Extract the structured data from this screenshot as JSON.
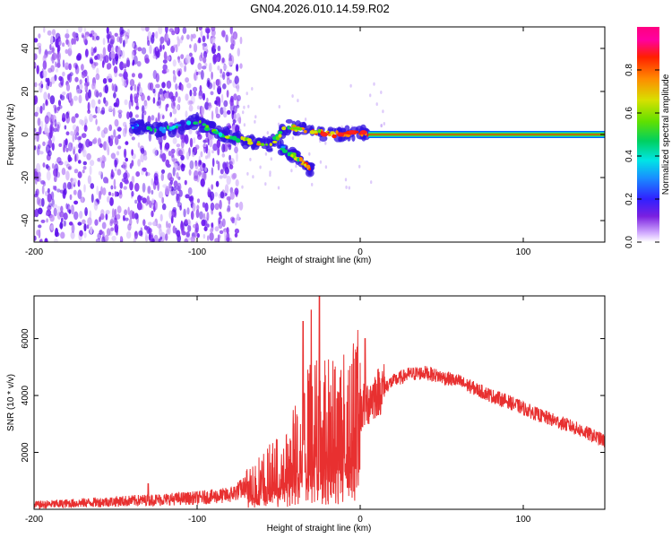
{
  "title": "GN04.2026.010.14.59.R02",
  "chart_data": [
    {
      "type": "heatmap",
      "name": "spectrogram",
      "xlabel": "Height of straight line (km)",
      "ylabel": "Frequency (Hz)",
      "xlim": [
        -200,
        150
      ],
      "ylim": [
        -50,
        50
      ],
      "xticks": [
        -200,
        -100,
        0,
        100
      ],
      "yticks": [
        -40,
        -20,
        0,
        20,
        40
      ],
      "colorbar": {
        "label": "Normalized spectral amplitude",
        "range": [
          0,
          1
        ],
        "ticks": [
          "0.0",
          "0.2",
          "0.4",
          "0.6",
          "0.8"
        ],
        "colors": [
          "#ffffff",
          "#d4b0ff",
          "#7a20e0",
          "#3020ff",
          "#1890ff",
          "#00e5e5",
          "#00d060",
          "#60e000",
          "#d8e000",
          "#ff8a00",
          "#ff2000",
          "#ff00a0",
          "#ff0080"
        ]
      },
      "carrier": {
        "x_start": 5,
        "x_end": 150,
        "frequency": 0
      },
      "features": [
        {
          "label": "noise",
          "x_range": [
            -200,
            -75
          ],
          "freq_range": [
            -50,
            50
          ]
        },
        {
          "label": "signal track",
          "points": [
            [
              -140,
              4
            ],
            [
              -120,
              2
            ],
            [
              -100,
              6
            ],
            [
              -85,
              0
            ],
            [
              -70,
              -3
            ],
            [
              -55,
              -5
            ],
            [
              -45,
              4
            ],
            [
              -30,
              1
            ],
            [
              -15,
              0
            ],
            [
              0,
              1
            ],
            [
              5,
              0
            ]
          ]
        },
        {
          "label": "branch",
          "points": [
            [
              -50,
              -5
            ],
            [
              -40,
              -10
            ],
            [
              -30,
              -16
            ]
          ]
        }
      ]
    },
    {
      "type": "line",
      "name": "snr",
      "xlabel": "Height of straight line (km)",
      "ylabel": "SNR (10 * v/v)",
      "color": "#e83030",
      "xlim": [
        -200,
        150
      ],
      "ylim": [
        0,
        7500
      ],
      "xticks": [
        -200,
        -100,
        0,
        100
      ],
      "yticks": [
        2000,
        4000,
        6000
      ],
      "x": [
        -200,
        -180,
        -160,
        -140,
        -120,
        -100,
        -80,
        -70,
        -60,
        -50,
        -40,
        -30,
        -20,
        -10,
        0,
        10,
        20,
        30,
        40,
        50,
        60,
        70,
        80,
        90,
        100,
        110,
        120,
        130,
        140,
        150
      ],
      "y": [
        150,
        200,
        250,
        300,
        350,
        400,
        500,
        800,
        1100,
        1400,
        2000,
        3000,
        3000,
        3000,
        3500,
        4100,
        4500,
        4750,
        4800,
        4650,
        4500,
        4250,
        4000,
        3800,
        3550,
        3300,
        3100,
        2900,
        2650,
        2400
      ],
      "spikes": [
        [
          -25,
          7500
        ],
        [
          -30,
          7000
        ],
        [
          -35,
          6600
        ],
        [
          3,
          6000
        ],
        [
          -130,
          900
        ]
      ]
    }
  ]
}
